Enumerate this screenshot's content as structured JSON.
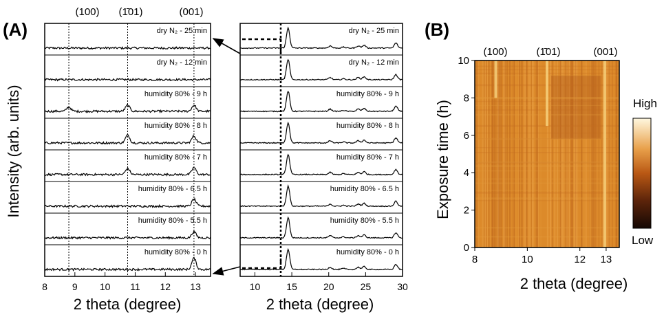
{
  "panel_a_label": "(A)",
  "panel_b_label": "(B)",
  "peak_labels": [
    "(100)",
    "(1̄01)",
    "(001)"
  ],
  "colorbar": {
    "high": "High",
    "low": "Low"
  },
  "colors": {
    "line": "#000000",
    "heat_low": "#1a0a04",
    "heat_mid": "#d9791c",
    "heat_high": "#fff6d8"
  },
  "chart_data": [
    {
      "id": "A-left",
      "type": "line",
      "title": "",
      "xlabel": "2 theta (degree)",
      "ylabel": "Intensity (arb. units)",
      "xlim": [
        8,
        13.5
      ],
      "xticks": [
        8,
        9,
        10,
        11,
        12,
        13
      ],
      "reference_lines_x": [
        8.8,
        10.75,
        12.95
      ],
      "series": [
        {
          "name": "dry N₂ - 25 min",
          "peaks": []
        },
        {
          "name": "dry N₂ - 12 min",
          "peaks": []
        },
        {
          "name": "humidity 80% - 9 h",
          "peaks": [
            [
              8.8,
              0.25
            ],
            [
              10.75,
              0.35
            ],
            [
              12.95,
              0.35
            ]
          ]
        },
        {
          "name": "humidity 80% - 8 h",
          "peaks": [
            [
              10.75,
              0.45
            ],
            [
              12.95,
              0.4
            ]
          ]
        },
        {
          "name": "humidity 80% - 7 h",
          "peaks": [
            [
              10.75,
              0.35
            ],
            [
              12.95,
              0.4
            ]
          ]
        },
        {
          "name": "humidity 80% - 6.5 h",
          "peaks": [
            [
              12.95,
              0.4
            ]
          ]
        },
        {
          "name": "humidity 80% - 5.5 h",
          "peaks": [
            [
              12.95,
              0.35
            ]
          ]
        },
        {
          "name": "humidity 80% - 0 h",
          "peaks": [
            [
              12.95,
              0.65
            ]
          ]
        }
      ]
    },
    {
      "id": "A-right",
      "type": "line",
      "title": "",
      "xlabel": "2 theta (degree)",
      "ylabel": "",
      "xlim": [
        8,
        30
      ],
      "xticks": [
        10,
        15,
        20,
        25,
        30
      ],
      "reference_lines_x": [
        13.5
      ],
      "series": [
        {
          "name": "dry N₂ - 25 min",
          "peaks": [
            [
              14.5,
              3.2
            ],
            [
              20.2,
              0.35
            ],
            [
              22.0,
              0.15
            ],
            [
              24.0,
              0.35
            ],
            [
              24.8,
              0.45
            ],
            [
              29.1,
              0.8
            ]
          ]
        },
        {
          "name": "dry N₂ - 12 min",
          "peaks": [
            [
              14.5,
              3.2
            ],
            [
              20.2,
              0.35
            ],
            [
              22.0,
              0.15
            ],
            [
              24.0,
              0.35
            ],
            [
              24.8,
              0.45
            ],
            [
              29.1,
              0.8
            ]
          ]
        },
        {
          "name": "humidity 80% - 9 h",
          "peaks": [
            [
              14.5,
              3.2
            ],
            [
              20.2,
              0.35
            ],
            [
              22.0,
              0.15
            ],
            [
              24.0,
              0.35
            ],
            [
              24.8,
              0.45
            ],
            [
              29.1,
              0.8
            ]
          ]
        },
        {
          "name": "humidity 80% - 8 h",
          "peaks": [
            [
              14.5,
              3.2
            ],
            [
              20.2,
              0.35
            ],
            [
              22.0,
              0.15
            ],
            [
              24.0,
              0.35
            ],
            [
              24.8,
              0.45
            ],
            [
              29.1,
              0.8
            ]
          ]
        },
        {
          "name": "humidity 80% - 7 h",
          "peaks": [
            [
              14.5,
              3.2
            ],
            [
              20.2,
              0.35
            ],
            [
              22.0,
              0.15
            ],
            [
              24.0,
              0.35
            ],
            [
              24.8,
              0.45
            ],
            [
              29.1,
              0.8
            ]
          ]
        },
        {
          "name": "humidity 80% - 6.5 h",
          "peaks": [
            [
              14.5,
              3.2
            ],
            [
              20.2,
              0.35
            ],
            [
              22.0,
              0.15
            ],
            [
              24.0,
              0.35
            ],
            [
              24.8,
              0.45
            ],
            [
              29.1,
              0.8
            ]
          ]
        },
        {
          "name": "humidity 80% - 5.5 h",
          "peaks": [
            [
              14.5,
              3.2
            ],
            [
              20.2,
              0.35
            ],
            [
              22.0,
              0.15
            ],
            [
              24.0,
              0.35
            ],
            [
              24.8,
              0.45
            ],
            [
              29.1,
              0.8
            ]
          ]
        },
        {
          "name": "humidity 80% - 0 h",
          "peaks": [
            [
              14.5,
              3.2
            ],
            [
              20.2,
              0.35
            ],
            [
              22.0,
              0.15
            ],
            [
              24.0,
              0.35
            ],
            [
              24.8,
              0.45
            ],
            [
              29.1,
              0.8
            ]
          ]
        }
      ]
    },
    {
      "id": "B",
      "type": "heatmap",
      "title": "",
      "xlabel": "2 theta (degree)",
      "ylabel": "Exposure time (h)",
      "xlim": [
        8,
        13.5
      ],
      "ylim": [
        0,
        10
      ],
      "xticks": [
        8,
        10,
        12,
        13
      ],
      "yticks": [
        0,
        2,
        4,
        6,
        8,
        10
      ],
      "features": [
        {
          "x": 10.75,
          "from_h": 6.5,
          "to_h": 10,
          "level": "bright"
        },
        {
          "x": 8.8,
          "from_h": 8,
          "to_h": 10,
          "level": "bright"
        },
        {
          "x": 12.95,
          "from_h": 0,
          "to_h": 10,
          "level": "bright"
        }
      ]
    }
  ]
}
